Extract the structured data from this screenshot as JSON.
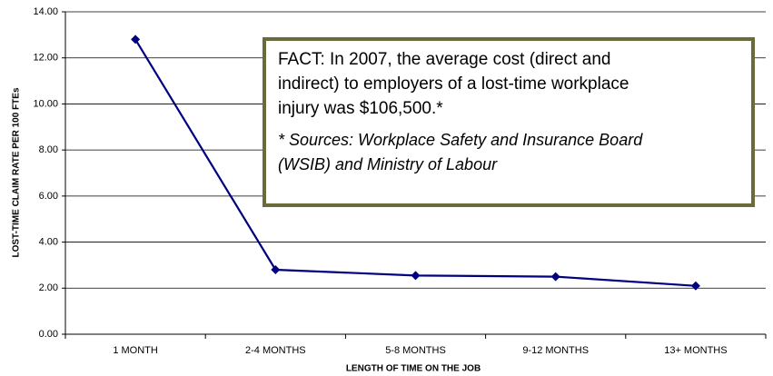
{
  "chart_data": {
    "type": "line",
    "categories": [
      "1 MONTH",
      "2-4 MONTHS",
      "5-8 MONTHS",
      "9-12 MONTHS",
      "13+ MONTHS"
    ],
    "series": [
      {
        "name": "Lost-time claim rate",
        "color": "#000080",
        "values": [
          12.8,
          2.8,
          2.55,
          2.5,
          2.1
        ]
      }
    ],
    "ylim": [
      0,
      14
    ],
    "yticks": [
      {
        "value": 0,
        "label": "0.00"
      },
      {
        "value": 2,
        "label": "2.00"
      },
      {
        "value": 4,
        "label": "4.00"
      },
      {
        "value": 6,
        "label": "6.00"
      },
      {
        "value": 8,
        "label": "8.00"
      },
      {
        "value": 10,
        "label": "10.00"
      },
      {
        "value": 12,
        "label": "12.00"
      },
      {
        "value": 14,
        "label": "14.00"
      }
    ],
    "grid": true,
    "x_label": "LENGTH OF TIME ON THE JOB",
    "y_label": "LOST-TIME CLAIM RATE PER 100 FTEs",
    "annotation": {
      "fact": [
        "FACT: In 2007, the average cost (direct and",
        "indirect) to employers of a lost-time workplace",
        "injury was $106,500.*"
      ],
      "source": [
        "* Sources: Workplace Safety and Insurance Board",
        "(WSIB) and Ministry of Labour"
      ]
    }
  }
}
